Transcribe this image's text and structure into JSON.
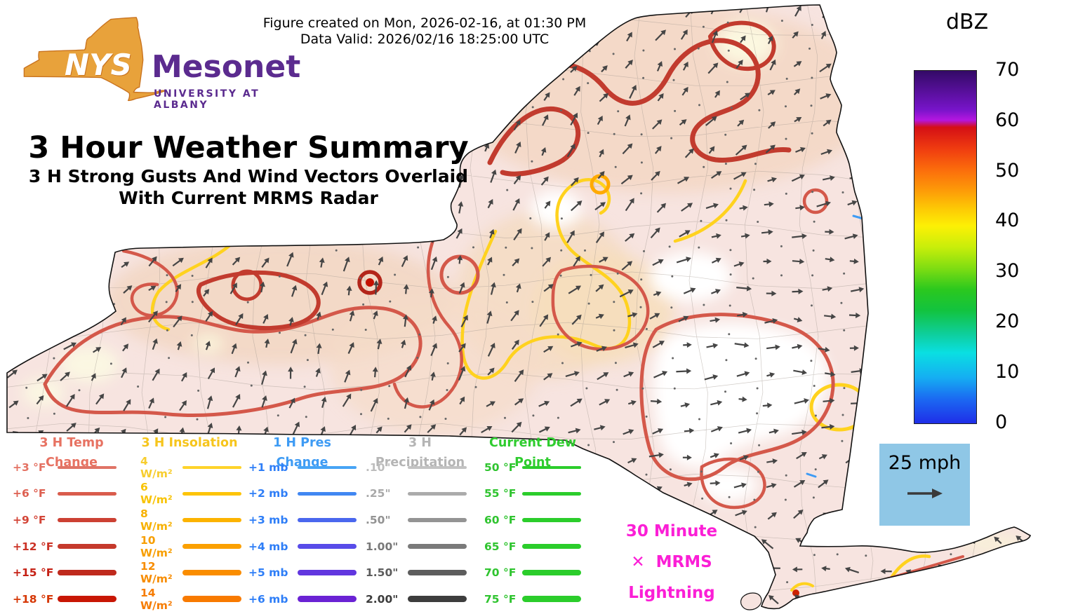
{
  "header": {
    "created": "Figure created on Mon, 2026-02-16, at 01:30 PM",
    "valid": "Data Valid: 2026/02/16 18:25:00 UTC"
  },
  "logo": {
    "acronym": "NYS",
    "name": "Mesonet",
    "affiliation": "UNIVERSITY AT ALBANY",
    "brand_orange": "#e8a23b",
    "brand_purple": "#5b2b8f"
  },
  "title": {
    "main": "3 Hour Weather Summary",
    "subtitle1": "3 H Strong Gusts And Wind Vectors Overlaid",
    "subtitle2": "With Current MRMS Radar"
  },
  "colorbar": {
    "units": "dBZ",
    "ticks": [
      "70",
      "60",
      "50",
      "40",
      "30",
      "20",
      "10",
      "0"
    ],
    "gradient": [
      "#330a66 0%",
      "#7714c9 11%",
      "#b516e0 14%",
      "#d40f15 16%",
      "#ef3b10 22%",
      "#fb6c0c 28%",
      "#fd9b08 34%",
      "#fdc805 39%",
      "#fdf005 44%",
      "#c8ee0a 50%",
      "#7fdd12 56%",
      "#2bc81e 62%",
      "#12c33f 68%",
      "#0ecfa0 75%",
      "#0adfe2 80%",
      "#15aef2 87%",
      "#1b6af2 93%",
      "#1f2ee8 100%"
    ]
  },
  "wind_legend": {
    "label": "25 mph",
    "background": "#8fc7e6",
    "arrow_icon": "right-arrow"
  },
  "lightning": {
    "line1": "30 Minute",
    "symbol": "✕",
    "line2": "MRMS",
    "line3": "Lightning",
    "color": "#fb1fd6"
  },
  "map": {
    "region": "New York State",
    "colors": {
      "base_fill": "#f7e4e0",
      "state_border": "#111111",
      "insolation": "#ffd21e",
      "insolation_strong": "#ffaa00",
      "temp_light": "#d4584a",
      "temp_mid": "#c23b2e",
      "temp_dark": "#b3251a",
      "temp_core": "#c41000",
      "pressure": "#3e9bf4",
      "wind_vector": "#454545",
      "county_line": "#a39a92"
    }
  },
  "legend": {
    "columns": [
      {
        "header": "3 H Temp Change",
        "header_color": "#e77262",
        "items": [
          {
            "label": "+3 °F",
            "label_color": "#e47263",
            "line": {
              "color": "#e07466",
              "width": 3.5
            }
          },
          {
            "label": "+6 °F",
            "label_color": "#dd5f50",
            "line": {
              "color": "#d95c4c",
              "width": 4.5
            }
          },
          {
            "label": "+9 °F",
            "label_color": "#d34537",
            "line": {
              "color": "#cc4133",
              "width": 5.5
            }
          },
          {
            "label": "+12 °F",
            "label_color": "#cb3226",
            "line": {
              "color": "#c5392c",
              "width": 6.5
            }
          },
          {
            "label": "+15 °F",
            "label_color": "#c52014",
            "line": {
              "color": "#bf2a1d",
              "width": 7.5
            }
          },
          {
            "label": "+18 °F",
            "label_color": "#d63705",
            "line": {
              "color": "#c81604",
              "width": 9
            }
          }
        ]
      },
      {
        "header": "3 H Insolation",
        "header_color": "#f6c51d",
        "items": [
          {
            "label": "4 W/m²",
            "label_color": "#f7cd2e",
            "line": {
              "color": "#fed32a",
              "width": 3.5
            }
          },
          {
            "label": "6 W/m²",
            "label_color": "#f8c304",
            "line": {
              "color": "#fdc408",
              "width": 4.5
            }
          },
          {
            "label": "8 W/m²",
            "label_color": "#f7b100",
            "line": {
              "color": "#fcb300",
              "width": 5.5
            }
          },
          {
            "label": "10 W/m²",
            "label_color": "#f79e00",
            "line": {
              "color": "#fba000",
              "width": 6.5
            }
          },
          {
            "label": "12 W/m²",
            "label_color": "#f78c00",
            "line": {
              "color": "#fa8d00",
              "width": 7.5
            }
          },
          {
            "label": "14 W/m²",
            "label_color": "#f67c02",
            "line": {
              "color": "#f87a00",
              "width": 9
            }
          }
        ]
      },
      {
        "header": "1 H Pres Change",
        "header_color": "#3e9bf4",
        "items": [
          {
            "label": "+1 mb",
            "label_color": "#2e7ef7",
            "line": {
              "color": "#47a4f5",
              "width": 3.5
            }
          },
          {
            "label": "+2 mb",
            "label_color": "#2e7ef7",
            "line": {
              "color": "#4187f2",
              "width": 4.5
            }
          },
          {
            "label": "+3 mb",
            "label_color": "#2e7ef7",
            "line": {
              "color": "#4a67ee",
              "width": 5.5
            }
          },
          {
            "label": "+4 mb",
            "label_color": "#2e7ef7",
            "line": {
              "color": "#584ce9",
              "width": 6.5
            }
          },
          {
            "label": "+5 mb",
            "label_color": "#2e7ef7",
            "line": {
              "color": "#6136df",
              "width": 7.5
            }
          },
          {
            "label": "+6 mb",
            "label_color": "#2e7ef7",
            "line": {
              "color": "#6a22d4",
              "width": 9
            }
          }
        ]
      },
      {
        "header": "3 H Precipitation",
        "header_color": "#b5b5b5",
        "items": [
          {
            "label": ".10\"",
            "label_color": "#bdbdbd",
            "line": {
              "color": "#c3c3c3",
              "width": 3.5
            }
          },
          {
            "label": ".25\"",
            "label_color": "#a8a8a8",
            "line": {
              "color": "#ababab",
              "width": 4.5
            }
          },
          {
            "label": ".50\"",
            "label_color": "#929292",
            "line": {
              "color": "#949494",
              "width": 5.5
            }
          },
          {
            "label": "1.00\"",
            "label_color": "#787878",
            "line": {
              "color": "#7a7a7a",
              "width": 6.5
            }
          },
          {
            "label": "1.50\"",
            "label_color": "#5c5c5c",
            "line": {
              "color": "#5d5d5d",
              "width": 7.5
            }
          },
          {
            "label": "2.00\"",
            "label_color": "#3c3c3c",
            "line": {
              "color": "#3d3d3d",
              "width": 9
            }
          }
        ]
      },
      {
        "header": "Current Dew Point",
        "header_color": "#2fcc2f",
        "items": [
          {
            "label": "50 °F",
            "label_color": "#2fc42f",
            "line": {
              "color": "#2bcd2b",
              "width": 3.5
            }
          },
          {
            "label": "55 °F",
            "label_color": "#2fc42f",
            "line": {
              "color": "#2bcd2b",
              "width": 4.5
            }
          },
          {
            "label": "60 °F",
            "label_color": "#2fc42f",
            "line": {
              "color": "#2bcd2b",
              "width": 5.5
            }
          },
          {
            "label": "65 °F",
            "label_color": "#2fc42f",
            "line": {
              "color": "#2bcd2b",
              "width": 6.5
            }
          },
          {
            "label": "70 °F",
            "label_color": "#2fc42f",
            "line": {
              "color": "#2bcd2b",
              "width": 7.5
            }
          },
          {
            "label": "75 °F",
            "label_color": "#2fc42f",
            "line": {
              "color": "#2bcd2b",
              "width": 9
            }
          }
        ]
      }
    ]
  }
}
